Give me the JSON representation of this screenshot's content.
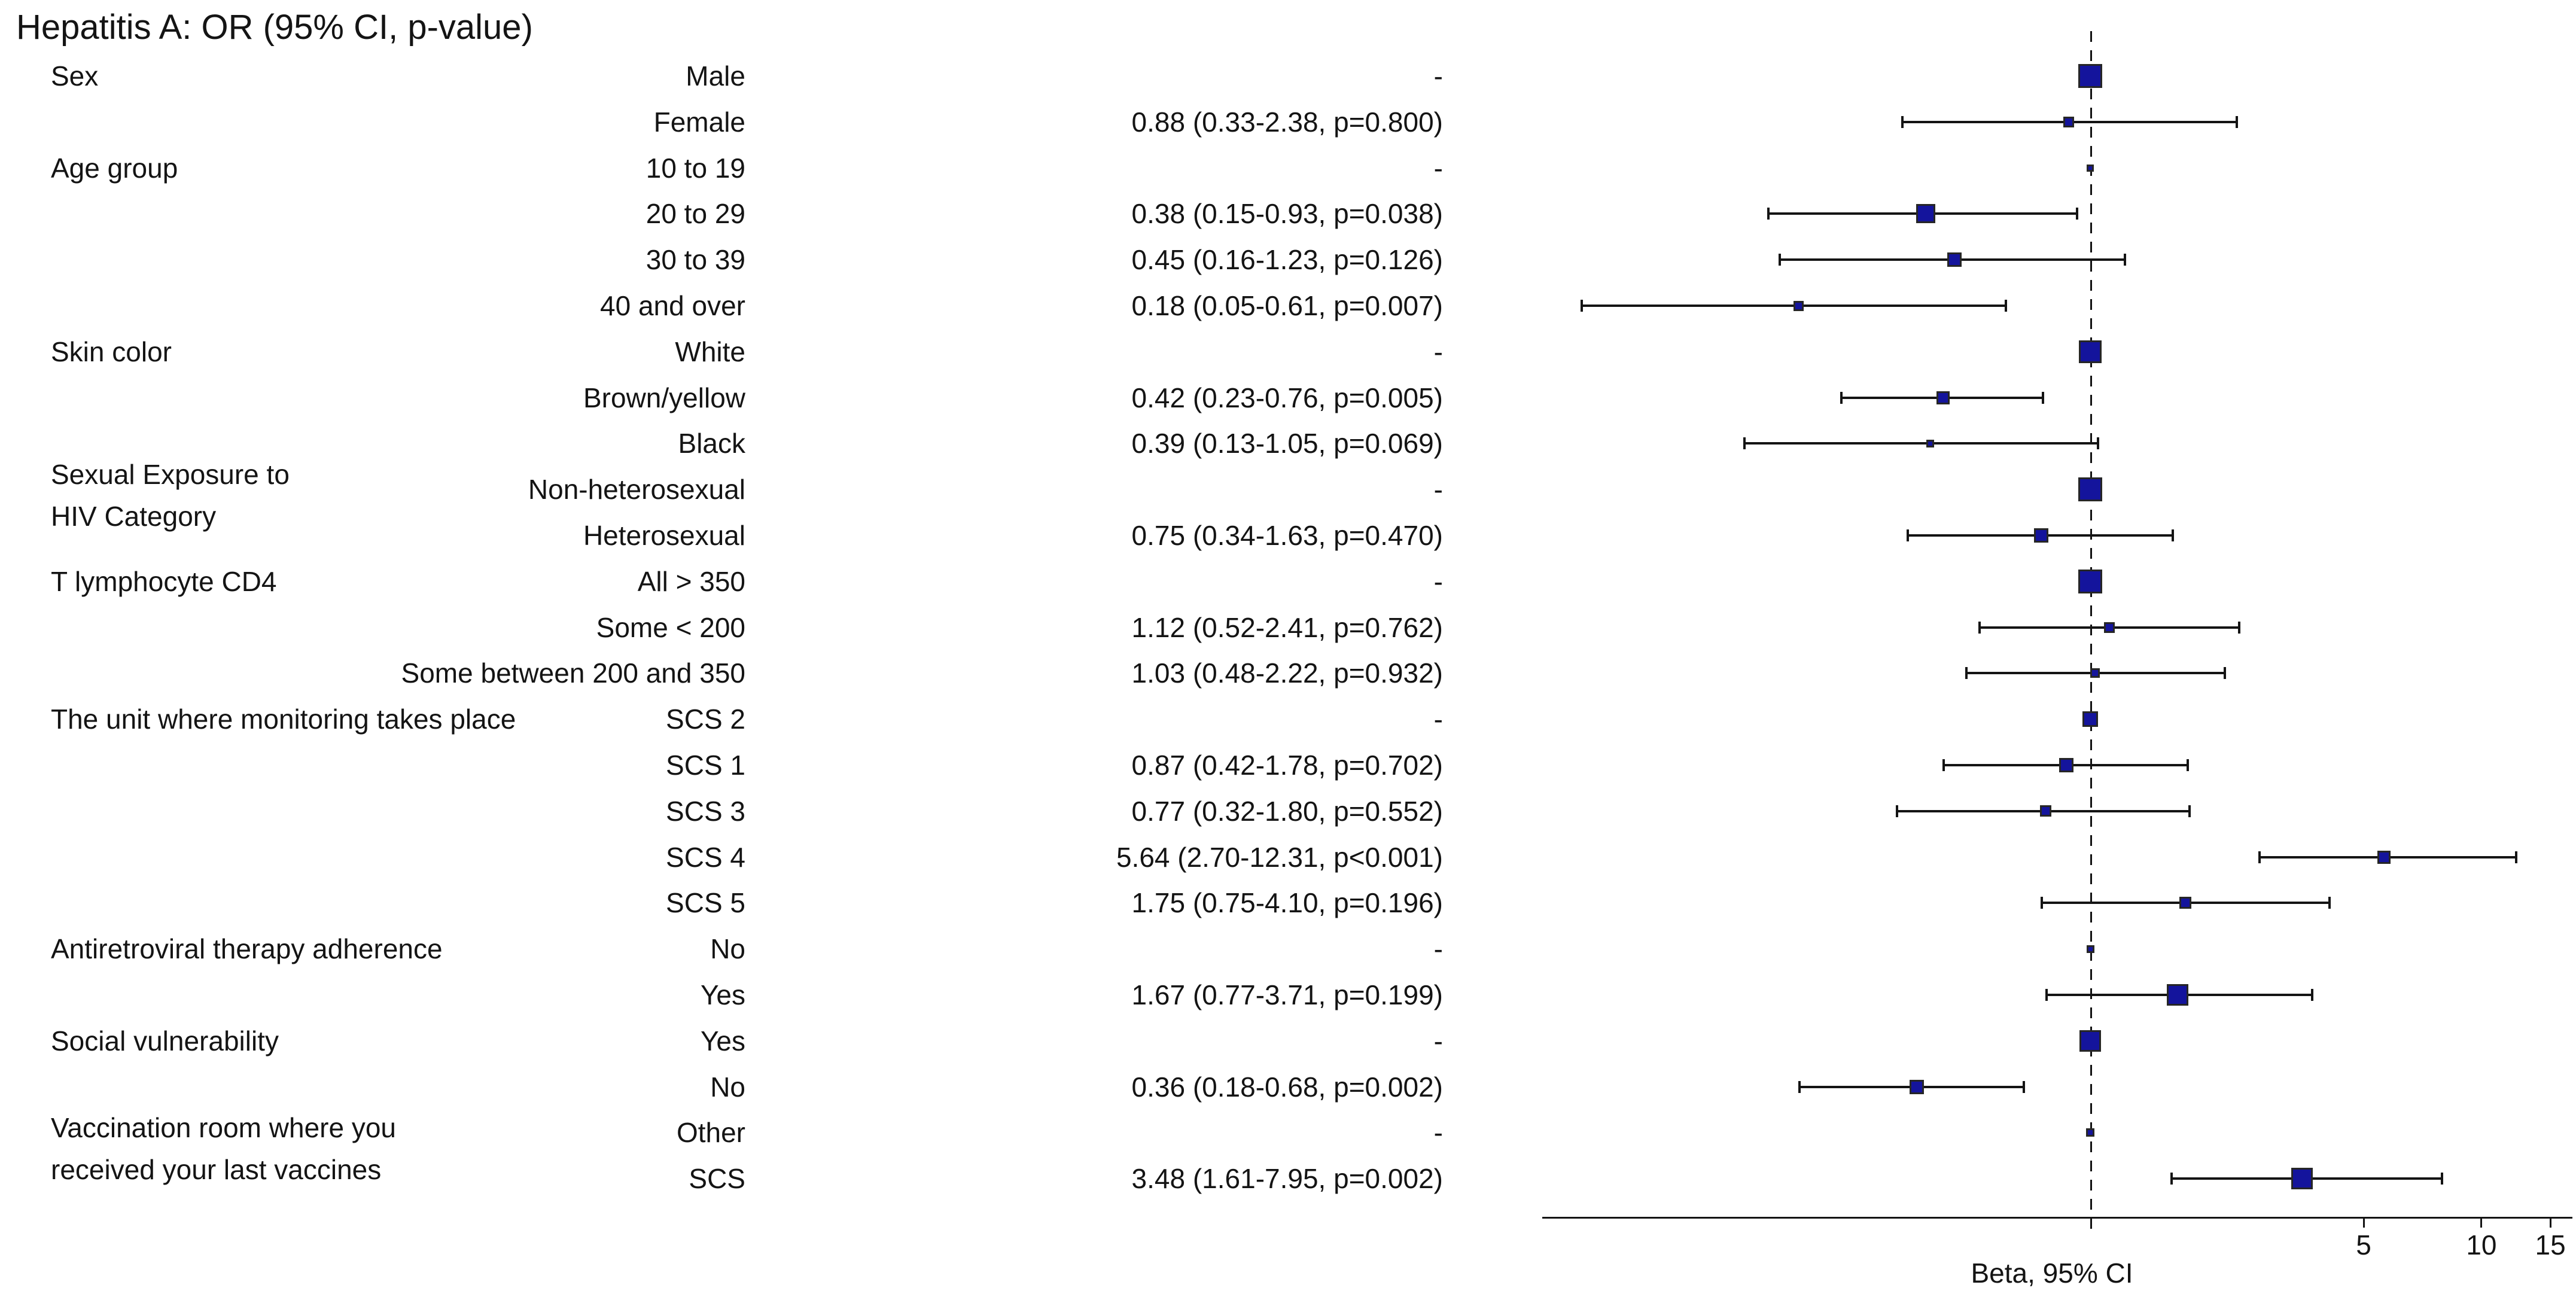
{
  "title": "Hepatitis A: OR (95% CI, p-value)",
  "colors": {
    "marker_fill": "#14149c",
    "marker_border": "#262626",
    "line": "#141414",
    "background": "#ffffff"
  },
  "chart_data": {
    "type": "forest",
    "title": "Hepatitis A: OR (95% CI, p-value)",
    "xlabel": "Beta, 95% CI",
    "x_scale": "log",
    "reference_value": 1,
    "x_ticks": [
      5,
      10,
      15
    ],
    "grid": false,
    "legend": false,
    "groups": [
      {
        "lines": [
          "Sex"
        ],
        "anchor_row": 0,
        "line_offsets": [
          0
        ]
      },
      {
        "lines": [
          "Age group"
        ],
        "anchor_row": 2,
        "line_offsets": [
          0
        ]
      },
      {
        "lines": [
          "Skin color"
        ],
        "anchor_row": 6,
        "line_offsets": [
          0
        ]
      },
      {
        "lines": [
          "Sexual Exposure to",
          " HIV Category"
        ],
        "anchor_row": 9,
        "line_offsets": [
          -25,
          45
        ]
      },
      {
        "lines": [
          "T lymphocyte CD4"
        ],
        "anchor_row": 11,
        "line_offsets": [
          0
        ]
      },
      {
        "lines": [
          "The unit where monitoring takes place"
        ],
        "anchor_row": 14,
        "line_offsets": [
          0
        ]
      },
      {
        "lines": [
          "Antiretroviral therapy adherence"
        ],
        "anchor_row": 19,
        "line_offsets": [
          0
        ]
      },
      {
        "lines": [
          "Social vulnerability"
        ],
        "anchor_row": 21,
        "line_offsets": [
          0
        ]
      },
      {
        "lines": [
          "Vaccination room where you",
          " received your last vaccines"
        ],
        "anchor_row": 23,
        "line_offsets": [
          -8,
          62
        ]
      }
    ],
    "rows": [
      {
        "group": "Sex",
        "level": "Male",
        "value": "-",
        "or": 1,
        "lo": null,
        "hi": null,
        "ref": true,
        "size": 40
      },
      {
        "group": "Sex",
        "level": "Female",
        "value": "0.88 (0.33-2.38, p=0.800)",
        "or": 0.88,
        "lo": 0.33,
        "hi": 2.38,
        "ref": false,
        "size": 18
      },
      {
        "group": "Age group",
        "level": "10 to 19",
        "value": "-",
        "or": 1,
        "lo": null,
        "hi": null,
        "ref": true,
        "size": 12
      },
      {
        "group": "Age group",
        "level": "20 to 29",
        "value": "0.38 (0.15-0.93, p=0.038)",
        "or": 0.38,
        "lo": 0.15,
        "hi": 0.93,
        "ref": false,
        "size": 32
      },
      {
        "group": "Age group",
        "level": "30 to 39",
        "value": "0.45 (0.16-1.23, p=0.126)",
        "or": 0.45,
        "lo": 0.16,
        "hi": 1.23,
        "ref": false,
        "size": 24
      },
      {
        "group": "Age group",
        "level": "40 and over",
        "value": "0.18 (0.05-0.61, p=0.007)",
        "or": 0.18,
        "lo": 0.05,
        "hi": 0.61,
        "ref": false,
        "size": 17
      },
      {
        "group": "Skin color",
        "level": "White",
        "value": "-",
        "or": 1,
        "lo": null,
        "hi": null,
        "ref": true,
        "size": 38
      },
      {
        "group": "Skin color",
        "level": "Brown/yellow",
        "value": "0.42 (0.23-0.76, p=0.005)",
        "or": 0.42,
        "lo": 0.23,
        "hi": 0.76,
        "ref": false,
        "size": 22
      },
      {
        "group": "Skin color",
        "level": "Black",
        "value": "0.39 (0.13-1.05, p=0.069)",
        "or": 0.39,
        "lo": 0.13,
        "hi": 1.05,
        "ref": false,
        "size": 13
      },
      {
        "group": "Sexual Exposure to HIV Category",
        "level": "Non-heterosexual",
        "value": "-",
        "or": 1,
        "lo": null,
        "hi": null,
        "ref": true,
        "size": 40
      },
      {
        "group": "Sexual Exposure to HIV Category",
        "level": "Heterosexual",
        "value": "0.75 (0.34-1.63, p=0.470)",
        "or": 0.75,
        "lo": 0.34,
        "hi": 1.63,
        "ref": false,
        "size": 24
      },
      {
        "group": "T lymphocyte CD4",
        "level": "All > 350",
        "value": "-",
        "or": 1,
        "lo": null,
        "hi": null,
        "ref": true,
        "size": 40
      },
      {
        "group": "T lymphocyte CD4",
        "level": "Some < 200",
        "value": "1.12 (0.52-2.41, p=0.762)",
        "or": 1.12,
        "lo": 0.52,
        "hi": 2.41,
        "ref": false,
        "size": 18
      },
      {
        "group": "T lymphocyte CD4",
        "level": "Some between 200 and 350",
        "value": "1.03 (0.48-2.22, p=0.932)",
        "or": 1.03,
        "lo": 0.48,
        "hi": 2.22,
        "ref": false,
        "size": 16
      },
      {
        "group": "The unit where monitoring takes place",
        "level": "SCS 2",
        "value": "-",
        "or": 1,
        "lo": null,
        "hi": null,
        "ref": true,
        "size": 26
      },
      {
        "group": "The unit where monitoring takes place",
        "level": "SCS 1",
        "value": "0.87 (0.42-1.78, p=0.702)",
        "or": 0.87,
        "lo": 0.42,
        "hi": 1.78,
        "ref": false,
        "size": 24
      },
      {
        "group": "The unit where monitoring takes place",
        "level": "SCS 3",
        "value": "0.77 (0.32-1.80, p=0.552)",
        "or": 0.77,
        "lo": 0.32,
        "hi": 1.8,
        "ref": false,
        "size": 19
      },
      {
        "group": "The unit where monitoring takes place",
        "level": "SCS 4",
        "value": "5.64 (2.70-12.31, p<0.001)",
        "or": 5.64,
        "lo": 2.7,
        "hi": 12.31,
        "ref": false,
        "size": 22
      },
      {
        "group": "The unit where monitoring takes place",
        "level": "SCS 5",
        "value": "1.75 (0.75-4.10, p=0.196)",
        "or": 1.75,
        "lo": 0.75,
        "hi": 4.1,
        "ref": false,
        "size": 20
      },
      {
        "group": "Antiretroviral therapy adherence",
        "level": "No",
        "value": "-",
        "or": 1,
        "lo": null,
        "hi": null,
        "ref": true,
        "size": 13
      },
      {
        "group": "Antiretroviral therapy adherence",
        "level": "Yes",
        "value": "1.67 (0.77-3.71, p=0.199)",
        "or": 1.67,
        "lo": 0.77,
        "hi": 3.71,
        "ref": false,
        "size": 36
      },
      {
        "group": "Social vulnerability",
        "level": "Yes",
        "value": "-",
        "or": 1,
        "lo": null,
        "hi": null,
        "ref": true,
        "size": 36
      },
      {
        "group": "Social vulnerability",
        "level": "No",
        "value": "0.36 (0.18-0.68, p=0.002)",
        "or": 0.36,
        "lo": 0.18,
        "hi": 0.68,
        "ref": false,
        "size": 24
      },
      {
        "group": "Vaccination room where you received your last vaccines",
        "level": "Other",
        "value": "-",
        "or": 1,
        "lo": null,
        "hi": null,
        "ref": true,
        "size": 14
      },
      {
        "group": "Vaccination room where you received your last vaccines",
        "level": "SCS",
        "value": "3.48 (1.61-7.95, p=0.002)",
        "or": 3.48,
        "lo": 1.61,
        "hi": 7.95,
        "ref": false,
        "size": 36
      }
    ]
  }
}
